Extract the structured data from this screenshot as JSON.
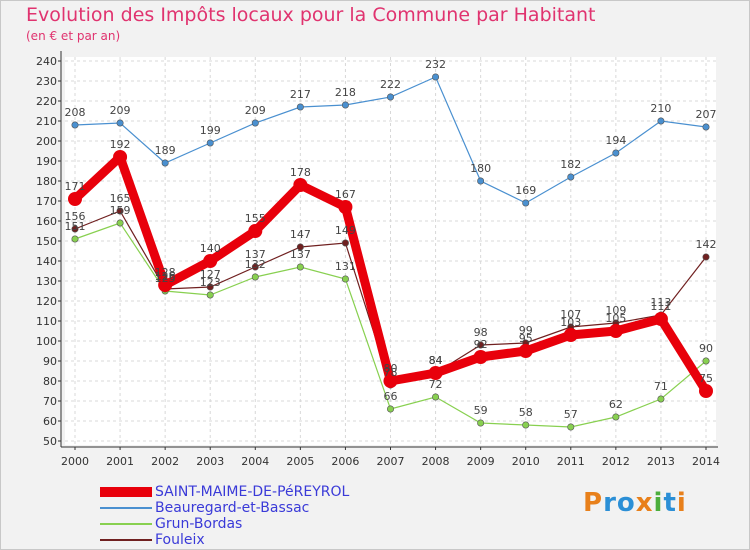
{
  "header": {
    "title": "Evolution des Impôts locaux pour la Commune par Habitant",
    "subtitle": "(en € et par an)"
  },
  "logo": {
    "text": "Proxiti",
    "colors": [
      "#e8801b",
      "#2b8fd6",
      "#2b8fd6",
      "#e8801b",
      "#4cae3c",
      "#2b8fd6",
      "#e8801b"
    ]
  },
  "chart_data": {
    "type": "line",
    "title": "Evolution des Impôts locaux pour la Commune par Habitant",
    "subtitle": "(en € et par an)",
    "x": [
      "2000",
      "2001",
      "2002",
      "2003",
      "2004",
      "2005",
      "2006",
      "2007",
      "2008",
      "2009",
      "2010",
      "2011",
      "2012",
      "2013",
      "2014"
    ],
    "ylim": [
      50,
      240
    ],
    "yticks": [
      50,
      60,
      70,
      80,
      90,
      100,
      110,
      120,
      130,
      140,
      150,
      160,
      170,
      180,
      190,
      200,
      210,
      220,
      230,
      240
    ],
    "grid": true,
    "legend_position": "bottom-left",
    "series": [
      {
        "name": "SAINT-MAIME-DE-PéREYROL",
        "color": "#e8000b",
        "emphasis": true,
        "values": [
          171,
          192,
          128,
          140,
          155,
          178,
          167,
          80,
          84,
          92,
          95,
          103,
          105,
          111,
          75
        ]
      },
      {
        "name": "Beauregard-et-Bassac",
        "color": "#4a90d0",
        "values": [
          208,
          209,
          189,
          199,
          209,
          217,
          218,
          222,
          232,
          180,
          169,
          182,
          194,
          210,
          207
        ]
      },
      {
        "name": "Grun-Bordas",
        "color": "#88d050",
        "values": [
          151,
          159,
          125,
          123,
          132,
          137,
          131,
          66,
          72,
          59,
          58,
          57,
          62,
          71,
          90
        ]
      },
      {
        "name": "Fouleix",
        "color": "#702020",
        "values": [
          156,
          165,
          126,
          127,
          137,
          147,
          149,
          78,
          84,
          98,
          99,
          107,
          109,
          113,
          142
        ]
      }
    ]
  }
}
